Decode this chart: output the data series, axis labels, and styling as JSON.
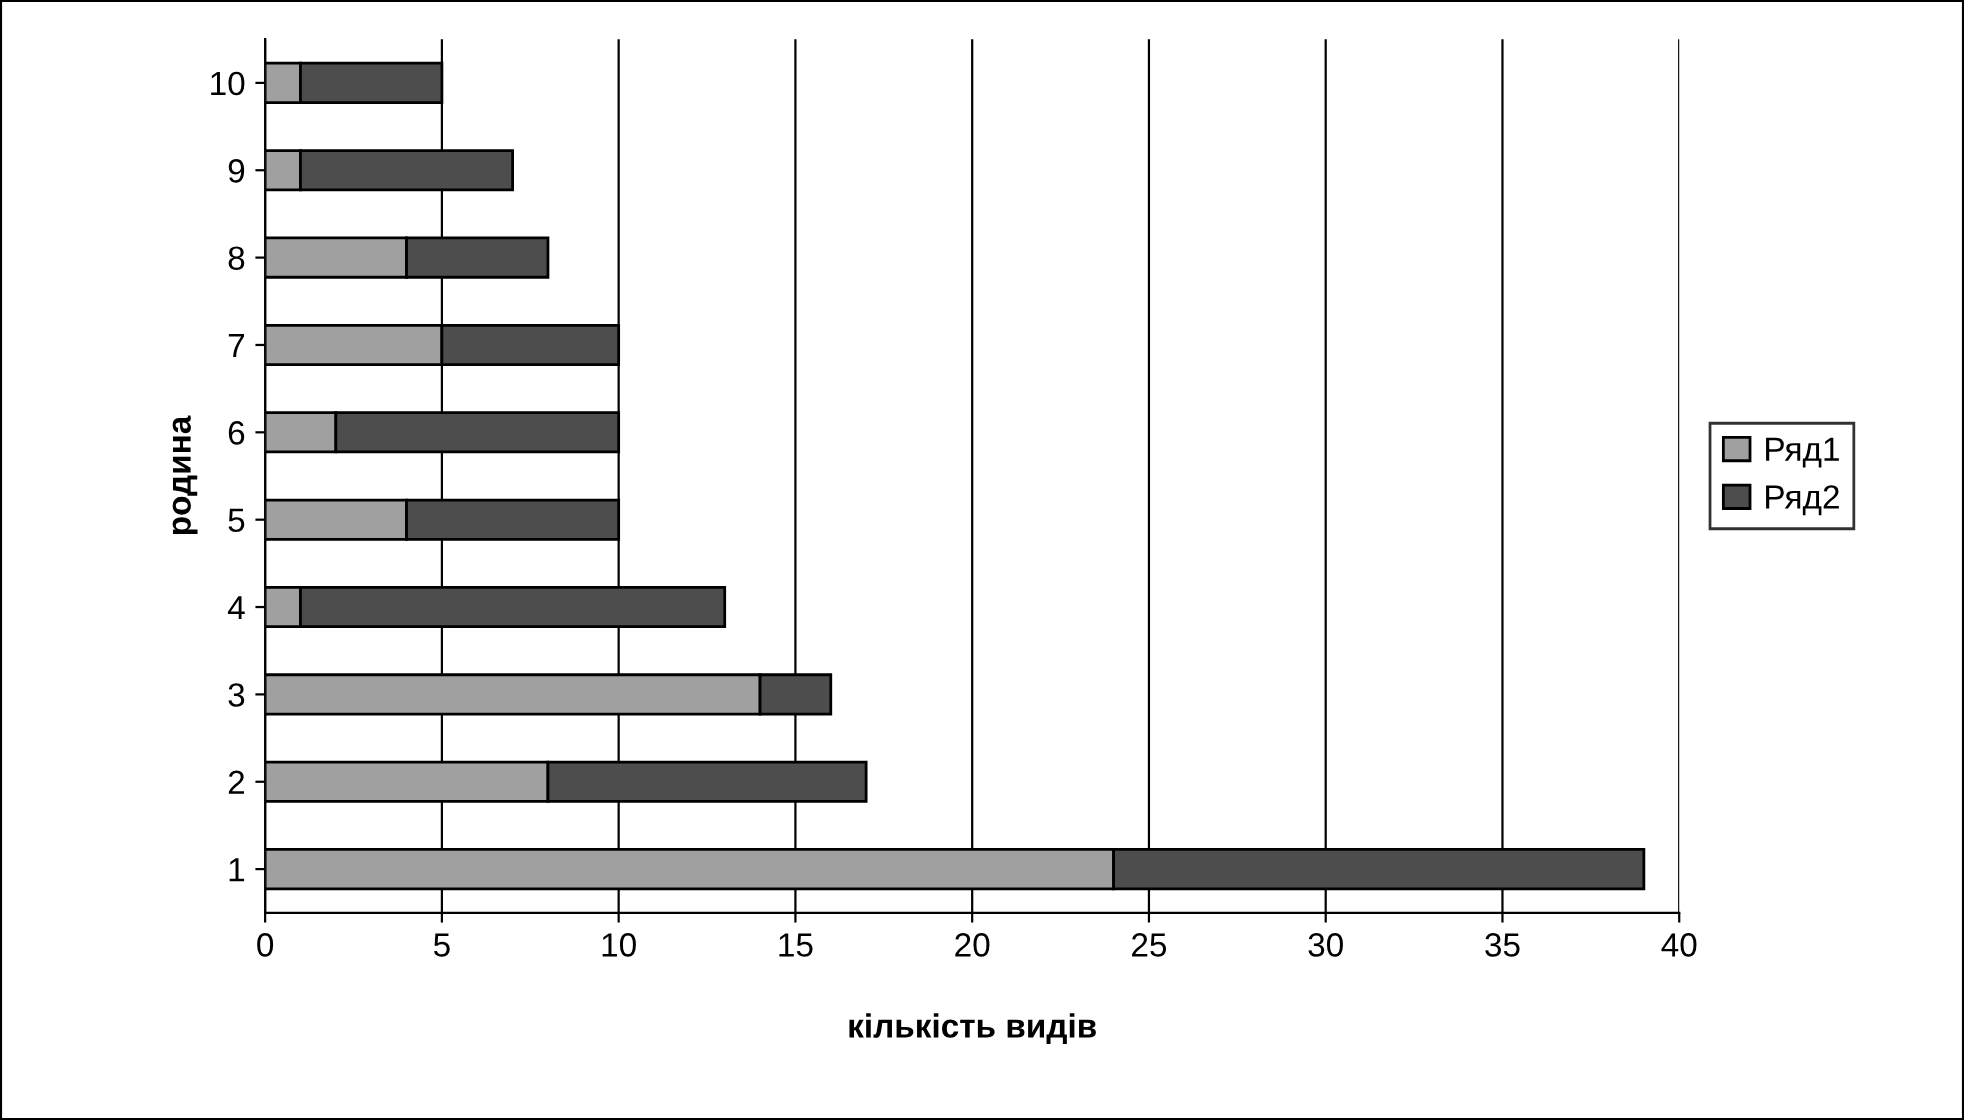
{
  "chart_data": {
    "type": "bar",
    "orientation": "horizontal",
    "stacked": true,
    "categories": [
      "10",
      "9",
      "8",
      "7",
      "6",
      "5",
      "4",
      "3",
      "2",
      "1"
    ],
    "series": [
      {
        "name": "Ряд1",
        "color": "#a0a0a0",
        "values": [
          1,
          1,
          4,
          5,
          2,
          4,
          1,
          14,
          8,
          24
        ]
      },
      {
        "name": "Ряд2",
        "color": "#4d4d4d",
        "values": [
          4,
          6,
          4,
          5,
          8,
          6,
          12,
          2,
          9,
          15
        ]
      }
    ],
    "xlim": [
      0,
      40
    ],
    "xticks": [
      0,
      5,
      10,
      15,
      20,
      25,
      30,
      35,
      40
    ],
    "xlabel": "кількість видів",
    "ylabel": "родина",
    "grid": "x",
    "legend": "right"
  }
}
